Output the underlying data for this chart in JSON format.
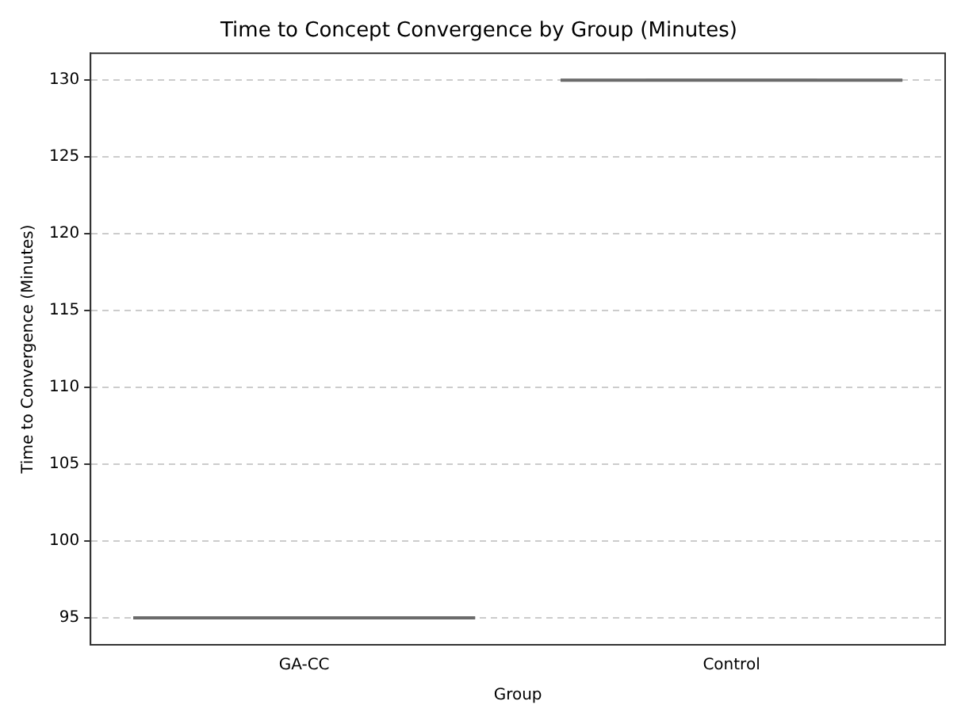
{
  "chart_data": {
    "type": "box",
    "title": "Time to Concept Convergence by Group (Minutes)",
    "xlabel": "Group",
    "ylabel": "Time to Convergence (Minutes)",
    "categories": [
      "GA-CC",
      "Control"
    ],
    "boxes": [
      {
        "low": 95,
        "q1": 95,
        "median": 95,
        "q3": 95,
        "high": 95
      },
      {
        "low": 130,
        "q1": 130,
        "median": 130,
        "q3": 130,
        "high": 130
      }
    ],
    "color": "#6b6b6b",
    "ylim": [
      93.25,
      131.75
    ],
    "yticks": [
      95,
      100,
      105,
      110,
      115,
      120,
      125,
      130
    ],
    "grid": "y"
  }
}
